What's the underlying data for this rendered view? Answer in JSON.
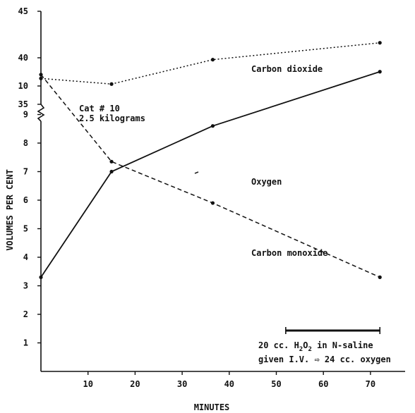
{
  "chart_data": {
    "type": "line",
    "xlabel": "MINUTES",
    "ylabel": "VOLUMES PER CENT",
    "x_ticks": [
      "10",
      "20",
      "30",
      "40",
      "50",
      "60",
      "70"
    ],
    "y_ticks_lower": [
      "1",
      "2",
      "3",
      "4",
      "5",
      "6",
      "7",
      "8",
      "9",
      "10"
    ],
    "y_ticks_upper": [
      "35",
      "40",
      "45"
    ],
    "xlim": [
      0,
      76
    ],
    "ylim_lower": [
      0,
      11
    ],
    "ylim_upper": [
      34,
      45
    ],
    "y_axis_break": true,
    "grid": false,
    "series": [
      {
        "name": "Carbon dioxide",
        "style": "dotted",
        "axis": "upper",
        "x": [
          0,
          15,
          36.5,
          72
        ],
        "y": [
          37.8,
          37.2,
          39.8,
          41.6
        ]
      },
      {
        "name": "Oxygen",
        "style": "solid",
        "axis": "lower",
        "x": [
          0,
          15,
          36.5,
          72
        ],
        "y": [
          3.3,
          7.0,
          8.6,
          10.5
        ]
      },
      {
        "name": "Carbon monoxide",
        "style": "dashed",
        "axis": "lower",
        "x": [
          0,
          15,
          36.5,
          72
        ],
        "y": [
          10.4,
          7.35,
          5.9,
          3.3
        ]
      }
    ],
    "annotations": {
      "subject_line1": "Cat # 10",
      "subject_line2": "2.5 kilograms",
      "infusion_line1_pre": "20 cc. H",
      "infusion_sub1": "2",
      "infusion_mid": "O",
      "infusion_sub2": "2",
      "infusion_line1_post": " in N-saline",
      "infusion_line2": "given I.V. ⇨ 24 cc. oxygen",
      "infusion_interval": [
        52,
        72
      ]
    }
  }
}
